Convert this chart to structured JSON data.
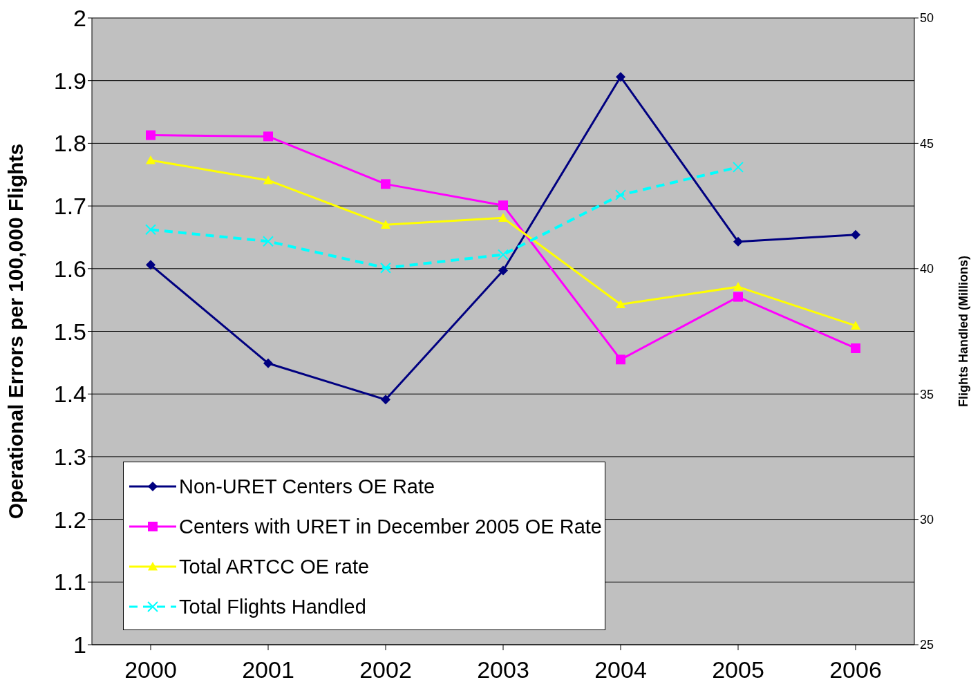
{
  "chart_data": {
    "type": "line",
    "ylabel": "Operational Errors per 100,000 Flights",
    "y2label": "Flights Handled (Millions)",
    "categories": [
      "2000",
      "2001",
      "2002",
      "2003",
      "2004",
      "2005",
      "2006"
    ],
    "series": [
      {
        "name": "Non-URET Centers OE Rate",
        "color": "#000080",
        "marker": "diamond",
        "line_style": "solid",
        "values": [
          1.606,
          1.449,
          1.391,
          1.597,
          1.906,
          1.643,
          1.654
        ]
      },
      {
        "name": "Centers with URET in December 2005 OE Rate",
        "color": "#ff00ff",
        "marker": "square",
        "line_style": "solid",
        "values": [
          1.813,
          1.811,
          1.735,
          1.701,
          1.455,
          1.555,
          1.473
        ]
      },
      {
        "name": "Total ARTCC OE rate",
        "color": "#ffff00",
        "marker": "triangle",
        "line_style": "solid",
        "values": [
          1.773,
          1.741,
          1.67,
          1.681,
          1.543,
          1.571,
          1.509
        ]
      },
      {
        "name": "Total Flights Handled",
        "color": "#00ffff",
        "marker": "cross",
        "line_style": "dashed",
        "axis": "y2",
        "values": [
          41.56,
          41.09,
          40.03,
          40.56,
          42.94,
          44.05,
          null
        ]
      }
    ],
    "ylim": [
      1,
      2
    ],
    "yticks": [
      1,
      1.1,
      1.2,
      1.3,
      1.4,
      1.5,
      1.6,
      1.7,
      1.8,
      1.9,
      2
    ],
    "y2lim": [
      25,
      50
    ],
    "y2ticks": [
      25,
      30,
      35,
      40,
      45,
      50
    ],
    "grid": "y",
    "legend": "bottom left"
  }
}
